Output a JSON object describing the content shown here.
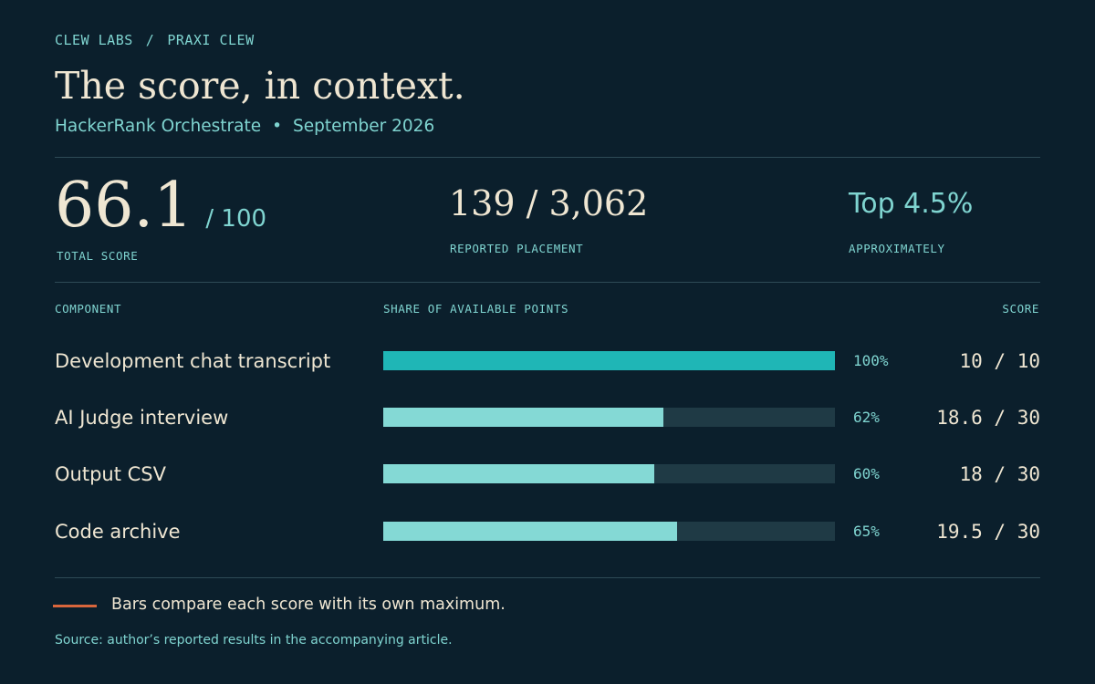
{
  "breadcrumb": {
    "org": "CLEW LABS",
    "separator": "/",
    "project": "PRAXI CLEW"
  },
  "header": {
    "title": "The score, in context.",
    "subtitle_event": "HackerRank Orchestrate",
    "subtitle_separator": "•",
    "subtitle_date": "September 2026"
  },
  "stats": {
    "total": {
      "value": "66.1",
      "denominator": "/ 100",
      "label": "TOTAL SCORE"
    },
    "placement": {
      "value": "139 / 3,062",
      "label": "REPORTED PLACEMENT"
    },
    "rank": {
      "value": "Top 4.5%",
      "label": "APPROXIMATELY"
    }
  },
  "columns": {
    "component": "COMPONENT",
    "share": "SHARE OF AVAILABLE POINTS",
    "score": "SCORE"
  },
  "chart_data": {
    "type": "bar",
    "orientation": "horizontal",
    "xlabel": "SHARE OF AVAILABLE POINTS",
    "xlim": [
      0,
      100
    ],
    "categories": [
      "Development chat transcript",
      "AI Judge interview",
      "Output CSV",
      "Code archive"
    ],
    "values": [
      100,
      62,
      60,
      65
    ],
    "percent_labels": [
      "100%",
      "62%",
      "60%",
      "65%"
    ],
    "scores": [
      "10 / 10",
      "18.6 / 30",
      "18 / 30",
      "19.5 / 30"
    ],
    "colors": {
      "full": "#1fb6b6",
      "partial": "#84d9d5",
      "track": "#1f3a45"
    },
    "grid": false
  },
  "legend": {
    "text": "Bars compare each score with its own maximum.",
    "color": "#d9663c"
  },
  "source": "Source: author’s reported results in the accompanying article."
}
